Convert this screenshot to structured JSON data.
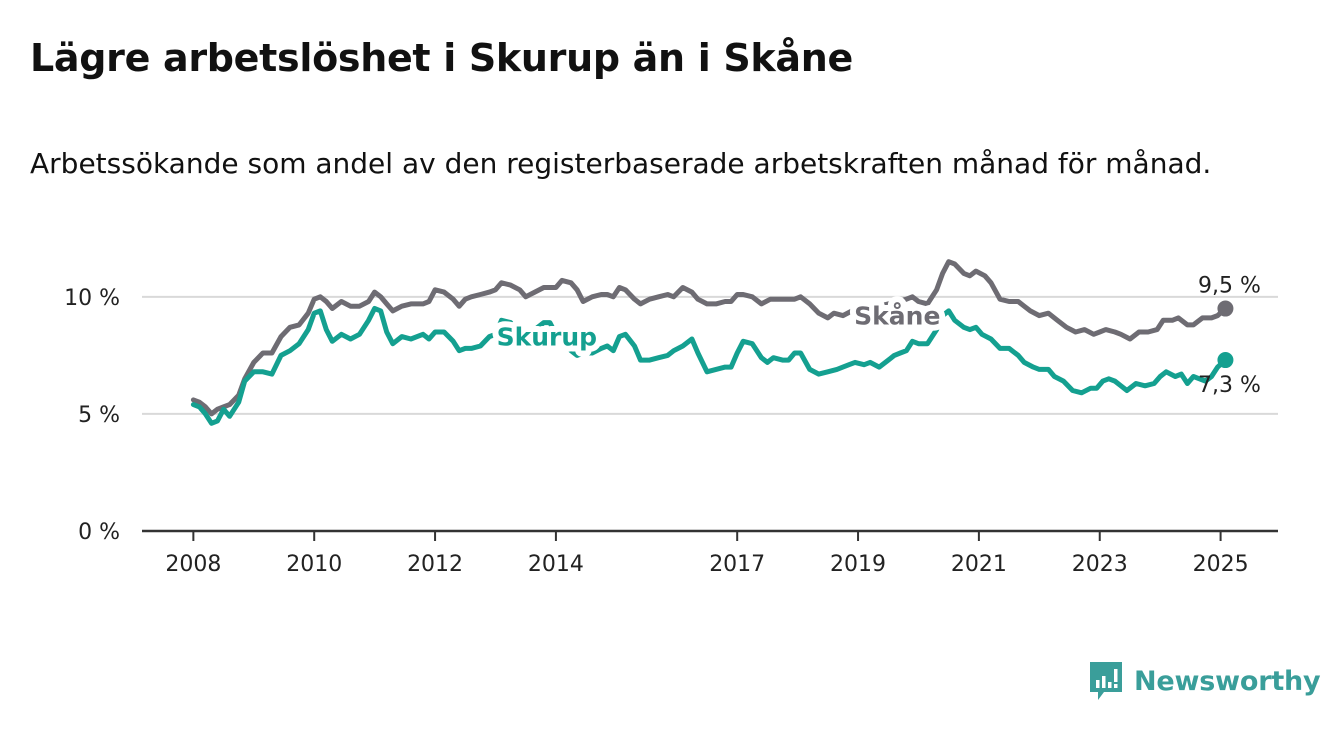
{
  "title": "Lägre arbetslöshet i Skurup än i Skåne",
  "subtitle": "Arbetssökande som andel av den registerbaserade arbetskraften månad för månad.",
  "brand": {
    "name": "Newsworthy",
    "color": "#3a9e9a",
    "icon": "bar-chart-logo-icon"
  },
  "chart_data": {
    "type": "line",
    "y_ticks": [
      {
        "value": 0,
        "label": "0 %"
      },
      {
        "value": 5,
        "label": "5 %"
      },
      {
        "value": 10,
        "label": "10 %"
      }
    ],
    "x_ticks": [
      {
        "value": 2008,
        "label": "2008"
      },
      {
        "value": 2010,
        "label": "2010"
      },
      {
        "value": 2012,
        "label": "2012"
      },
      {
        "value": 2014,
        "label": "2014"
      },
      {
        "value": 2017,
        "label": "2017"
      },
      {
        "value": 2019,
        "label": "2019"
      },
      {
        "value": 2021,
        "label": "2021"
      },
      {
        "value": 2023,
        "label": "2023"
      },
      {
        "value": 2025,
        "label": "2025"
      }
    ],
    "xlim": [
      2007.15,
      2025.95
    ],
    "ylim": [
      0,
      12
    ],
    "grid": true,
    "series": [
      {
        "name": "Skåne",
        "color": "#6e6c73",
        "end_label": "9,5 %",
        "points": [
          [
            2008.0,
            5.6
          ],
          [
            2008.1,
            5.5
          ],
          [
            2008.2,
            5.3
          ],
          [
            2008.3,
            5.0
          ],
          [
            2008.4,
            5.2
          ],
          [
            2008.5,
            5.3
          ],
          [
            2008.6,
            5.4
          ],
          [
            2008.75,
            5.8
          ],
          [
            2008.85,
            6.5
          ],
          [
            2009.0,
            7.2
          ],
          [
            2009.15,
            7.6
          ],
          [
            2009.3,
            7.6
          ],
          [
            2009.45,
            8.3
          ],
          [
            2009.6,
            8.7
          ],
          [
            2009.75,
            8.8
          ],
          [
            2009.9,
            9.3
          ],
          [
            2010.0,
            9.9
          ],
          [
            2010.1,
            10.0
          ],
          [
            2010.2,
            9.8
          ],
          [
            2010.3,
            9.5
          ],
          [
            2010.45,
            9.8
          ],
          [
            2010.6,
            9.6
          ],
          [
            2010.75,
            9.6
          ],
          [
            2010.9,
            9.8
          ],
          [
            2011.0,
            10.2
          ],
          [
            2011.1,
            10.0
          ],
          [
            2011.2,
            9.7
          ],
          [
            2011.3,
            9.4
          ],
          [
            2011.45,
            9.6
          ],
          [
            2011.6,
            9.7
          ],
          [
            2011.8,
            9.7
          ],
          [
            2011.9,
            9.8
          ],
          [
            2012.0,
            10.3
          ],
          [
            2012.15,
            10.2
          ],
          [
            2012.3,
            9.9
          ],
          [
            2012.4,
            9.6
          ],
          [
            2012.5,
            9.9
          ],
          [
            2012.6,
            10.0
          ],
          [
            2012.75,
            10.1
          ],
          [
            2012.9,
            10.2
          ],
          [
            2013.0,
            10.3
          ],
          [
            2013.1,
            10.6
          ],
          [
            2013.25,
            10.5
          ],
          [
            2013.4,
            10.3
          ],
          [
            2013.5,
            10.0
          ],
          [
            2013.65,
            10.2
          ],
          [
            2013.8,
            10.4
          ],
          [
            2013.9,
            10.4
          ],
          [
            2014.0,
            10.4
          ],
          [
            2014.1,
            10.7
          ],
          [
            2014.25,
            10.6
          ],
          [
            2014.35,
            10.3
          ],
          [
            2014.45,
            9.8
          ],
          [
            2014.6,
            10.0
          ],
          [
            2014.75,
            10.1
          ],
          [
            2014.85,
            10.1
          ],
          [
            2014.95,
            10.0
          ],
          [
            2015.05,
            10.4
          ],
          [
            2015.15,
            10.3
          ],
          [
            2015.3,
            9.9
          ],
          [
            2015.4,
            9.7
          ],
          [
            2015.55,
            9.9
          ],
          [
            2015.7,
            10.0
          ],
          [
            2015.85,
            10.1
          ],
          [
            2015.95,
            10.0
          ],
          [
            2016.1,
            10.4
          ],
          [
            2016.25,
            10.2
          ],
          [
            2016.35,
            9.9
          ],
          [
            2016.5,
            9.7
          ],
          [
            2016.65,
            9.7
          ],
          [
            2016.8,
            9.8
          ],
          [
            2016.9,
            9.8
          ],
          [
            2017.0,
            10.1
          ],
          [
            2017.1,
            10.1
          ],
          [
            2017.25,
            10.0
          ],
          [
            2017.4,
            9.7
          ],
          [
            2017.55,
            9.9
          ],
          [
            2017.7,
            9.9
          ],
          [
            2017.85,
            9.9
          ],
          [
            2017.95,
            9.9
          ],
          [
            2018.05,
            10.0
          ],
          [
            2018.2,
            9.7
          ],
          [
            2018.35,
            9.3
          ],
          [
            2018.5,
            9.1
          ],
          [
            2018.6,
            9.3
          ],
          [
            2018.75,
            9.2
          ],
          [
            2018.9,
            9.4
          ],
          [
            2019.05,
            9.5
          ],
          [
            2019.2,
            9.4
          ],
          [
            2019.35,
            9.6
          ],
          [
            2019.5,
            9.7
          ],
          [
            2019.65,
            9.8
          ],
          [
            2019.8,
            9.9
          ],
          [
            2019.9,
            10.0
          ],
          [
            2020.0,
            9.8
          ],
          [
            2020.15,
            9.7
          ],
          [
            2020.3,
            10.3
          ],
          [
            2020.4,
            11.0
          ],
          [
            2020.5,
            11.5
          ],
          [
            2020.6,
            11.4
          ],
          [
            2020.75,
            11.0
          ],
          [
            2020.85,
            10.9
          ],
          [
            2020.95,
            11.1
          ],
          [
            2021.1,
            10.9
          ],
          [
            2021.2,
            10.6
          ],
          [
            2021.35,
            9.9
          ],
          [
            2021.5,
            9.8
          ],
          [
            2021.65,
            9.8
          ],
          [
            2021.75,
            9.6
          ],
          [
            2021.85,
            9.4
          ],
          [
            2022.0,
            9.2
          ],
          [
            2022.15,
            9.3
          ],
          [
            2022.3,
            9.0
          ],
          [
            2022.45,
            8.7
          ],
          [
            2022.6,
            8.5
          ],
          [
            2022.75,
            8.6
          ],
          [
            2022.9,
            8.4
          ],
          [
            2023.0,
            8.5
          ],
          [
            2023.1,
            8.6
          ],
          [
            2023.25,
            8.5
          ],
          [
            2023.35,
            8.4
          ],
          [
            2023.5,
            8.2
          ],
          [
            2023.65,
            8.5
          ],
          [
            2023.8,
            8.5
          ],
          [
            2023.95,
            8.6
          ],
          [
            2024.05,
            9.0
          ],
          [
            2024.2,
            9.0
          ],
          [
            2024.3,
            9.1
          ],
          [
            2024.45,
            8.8
          ],
          [
            2024.55,
            8.8
          ],
          [
            2024.7,
            9.1
          ],
          [
            2024.85,
            9.1
          ],
          [
            2024.95,
            9.2
          ],
          [
            2025.08,
            9.5
          ]
        ]
      },
      {
        "name": "Skurup",
        "color": "#14a090",
        "end_label": "7,3 %",
        "points": [
          [
            2008.0,
            5.4
          ],
          [
            2008.1,
            5.3
          ],
          [
            2008.2,
            5.0
          ],
          [
            2008.3,
            4.6
          ],
          [
            2008.4,
            4.7
          ],
          [
            2008.5,
            5.2
          ],
          [
            2008.6,
            4.9
          ],
          [
            2008.75,
            5.5
          ],
          [
            2008.85,
            6.4
          ],
          [
            2009.0,
            6.8
          ],
          [
            2009.15,
            6.8
          ],
          [
            2009.3,
            6.7
          ],
          [
            2009.45,
            7.5
          ],
          [
            2009.6,
            7.7
          ],
          [
            2009.75,
            8.0
          ],
          [
            2009.9,
            8.6
          ],
          [
            2010.0,
            9.3
          ],
          [
            2010.1,
            9.4
          ],
          [
            2010.2,
            8.6
          ],
          [
            2010.3,
            8.1
          ],
          [
            2010.45,
            8.4
          ],
          [
            2010.6,
            8.2
          ],
          [
            2010.75,
            8.4
          ],
          [
            2010.9,
            9.0
          ],
          [
            2011.0,
            9.5
          ],
          [
            2011.1,
            9.4
          ],
          [
            2011.2,
            8.5
          ],
          [
            2011.3,
            8.0
          ],
          [
            2011.45,
            8.3
          ],
          [
            2011.6,
            8.2
          ],
          [
            2011.8,
            8.4
          ],
          [
            2011.9,
            8.2
          ],
          [
            2012.0,
            8.5
          ],
          [
            2012.15,
            8.5
          ],
          [
            2012.3,
            8.1
          ],
          [
            2012.4,
            7.7
          ],
          [
            2012.5,
            7.8
          ],
          [
            2012.6,
            7.8
          ],
          [
            2012.75,
            7.9
          ],
          [
            2012.9,
            8.3
          ],
          [
            2013.0,
            8.4
          ],
          [
            2013.1,
            9.0
          ],
          [
            2013.25,
            8.9
          ],
          [
            2013.4,
            8.5
          ],
          [
            2013.5,
            8.4
          ],
          [
            2013.65,
            8.6
          ],
          [
            2013.8,
            8.9
          ],
          [
            2013.9,
            8.9
          ],
          [
            2014.0,
            8.4
          ],
          [
            2014.1,
            8.2
          ],
          [
            2014.25,
            7.7
          ],
          [
            2014.35,
            7.5
          ],
          [
            2014.45,
            7.6
          ],
          [
            2014.6,
            7.6
          ],
          [
            2014.75,
            7.8
          ],
          [
            2014.85,
            7.9
          ],
          [
            2014.95,
            7.7
          ],
          [
            2015.05,
            8.3
          ],
          [
            2015.15,
            8.4
          ],
          [
            2015.3,
            7.9
          ],
          [
            2015.4,
            7.3
          ],
          [
            2015.55,
            7.3
          ],
          [
            2015.7,
            7.4
          ],
          [
            2015.85,
            7.5
          ],
          [
            2015.95,
            7.7
          ],
          [
            2016.1,
            7.9
          ],
          [
            2016.25,
            8.2
          ],
          [
            2016.35,
            7.6
          ],
          [
            2016.5,
            6.8
          ],
          [
            2016.65,
            6.9
          ],
          [
            2016.8,
            7.0
          ],
          [
            2016.9,
            7.0
          ],
          [
            2017.0,
            7.6
          ],
          [
            2017.1,
            8.1
          ],
          [
            2017.25,
            8.0
          ],
          [
            2017.4,
            7.4
          ],
          [
            2017.5,
            7.2
          ],
          [
            2017.6,
            7.4
          ],
          [
            2017.75,
            7.3
          ],
          [
            2017.85,
            7.3
          ],
          [
            2017.95,
            7.6
          ],
          [
            2018.05,
            7.6
          ],
          [
            2018.2,
            6.9
          ],
          [
            2018.35,
            6.7
          ],
          [
            2018.5,
            6.8
          ],
          [
            2018.65,
            6.9
          ],
          [
            2018.75,
            7.0
          ],
          [
            2018.85,
            7.1
          ],
          [
            2018.95,
            7.2
          ],
          [
            2019.1,
            7.1
          ],
          [
            2019.2,
            7.2
          ],
          [
            2019.35,
            7.0
          ],
          [
            2019.5,
            7.3
          ],
          [
            2019.6,
            7.5
          ],
          [
            2019.7,
            7.6
          ],
          [
            2019.8,
            7.7
          ],
          [
            2019.9,
            8.1
          ],
          [
            2020.0,
            8.0
          ],
          [
            2020.15,
            8.0
          ],
          [
            2020.3,
            8.6
          ],
          [
            2020.4,
            9.2
          ],
          [
            2020.5,
            9.4
          ],
          [
            2020.6,
            9.0
          ],
          [
            2020.75,
            8.7
          ],
          [
            2020.85,
            8.6
          ],
          [
            2020.95,
            8.7
          ],
          [
            2021.05,
            8.4
          ],
          [
            2021.2,
            8.2
          ],
          [
            2021.35,
            7.8
          ],
          [
            2021.5,
            7.8
          ],
          [
            2021.65,
            7.5
          ],
          [
            2021.75,
            7.2
          ],
          [
            2021.9,
            7.0
          ],
          [
            2022.0,
            6.9
          ],
          [
            2022.15,
            6.9
          ],
          [
            2022.25,
            6.6
          ],
          [
            2022.4,
            6.4
          ],
          [
            2022.55,
            6.0
          ],
          [
            2022.7,
            5.9
          ],
          [
            2022.85,
            6.1
          ],
          [
            2022.95,
            6.1
          ],
          [
            2023.05,
            6.4
          ],
          [
            2023.15,
            6.5
          ],
          [
            2023.25,
            6.4
          ],
          [
            2023.35,
            6.2
          ],
          [
            2023.45,
            6.0
          ],
          [
            2023.6,
            6.3
          ],
          [
            2023.75,
            6.2
          ],
          [
            2023.9,
            6.3
          ],
          [
            2024.0,
            6.6
          ],
          [
            2024.1,
            6.8
          ],
          [
            2024.25,
            6.6
          ],
          [
            2024.35,
            6.7
          ],
          [
            2024.45,
            6.3
          ],
          [
            2024.55,
            6.6
          ],
          [
            2024.65,
            6.5
          ],
          [
            2024.75,
            6.4
          ],
          [
            2024.85,
            6.6
          ],
          [
            2024.95,
            7.0
          ],
          [
            2025.08,
            7.3
          ]
        ]
      }
    ]
  }
}
